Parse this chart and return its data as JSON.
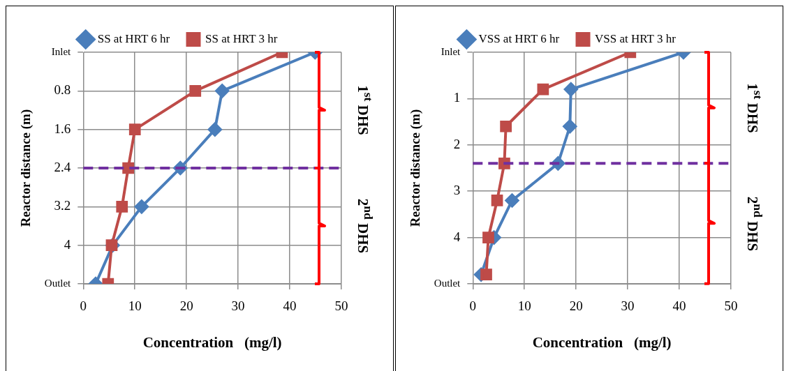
{
  "chart_data": [
    {
      "type": "line",
      "xlabel": "Concentration   (mg/l)",
      "ylabel": "Reactor distance (m)",
      "xlim": [
        0,
        50
      ],
      "xticks": [
        0,
        10,
        20,
        30,
        40,
        50
      ],
      "ylim": [
        4.8,
        0
      ],
      "yticks": [
        {
          "value": 0,
          "label": "Inlet"
        },
        0.8,
        1.6,
        2.4,
        3.2,
        4,
        {
          "value": 4.8,
          "label": "Outlet"
        }
      ],
      "grid": true,
      "legend": "top",
      "line_style": "solid",
      "series": [
        {
          "name": "SS at HRT 6 hr",
          "color": "#4a7ebb",
          "marker": "diamond",
          "x": [
            44.9,
            26.9,
            25.5,
            18.8,
            11.3,
            5.7,
            2.4
          ],
          "values": [
            0,
            0.8,
            1.6,
            2.4,
            3.2,
            4,
            4.8
          ]
        },
        {
          "name": "SS at HRT 3 hr",
          "color": "#be4b48",
          "marker": "square",
          "x": [
            38.5,
            21.7,
            10,
            8.7,
            7.5,
            5.5,
            4.8
          ],
          "values": [
            0,
            0.8,
            1.6,
            2.4,
            3.2,
            4,
            4.8
          ]
        }
      ],
      "ref_lines": [
        {
          "axis": "y",
          "value": 2.4,
          "color": "#7030a0",
          "line_style": "dashed"
        }
      ],
      "annotations": [
        "1$^{st}$ DHS",
        "2$^{nd}$ DHS"
      ]
    },
    {
      "type": "line",
      "xlabel": "Concentration   (mg/l)",
      "ylabel": "Reactor distance (m)",
      "xlim": [
        0,
        50
      ],
      "xticks": [
        0,
        10,
        20,
        30,
        40,
        50
      ],
      "ylim": [
        5,
        0
      ],
      "yticks": [
        {
          "value": 0,
          "label": "Inlet"
        },
        1,
        2,
        3,
        4,
        {
          "value": 5,
          "label": "Outlet"
        }
      ],
      "grid": true,
      "legend": "top",
      "line_style": "solid",
      "series": [
        {
          "name": "VSS at HRT 6 hr",
          "color": "#4a7ebb",
          "marker": "diamond",
          "x": [
            40.8,
            19,
            18.8,
            16.5,
            7.6,
            4.1,
            1.6
          ],
          "values": [
            0,
            0.8,
            1.6,
            2.4,
            3.2,
            4,
            4.8
          ]
        },
        {
          "name": "VSS at HRT 3 hr",
          "color": "#be4b48",
          "marker": "square",
          "x": [
            30.5,
            13.6,
            6.4,
            6.1,
            4.7,
            3,
            2.6
          ],
          "values": [
            0,
            0.8,
            1.6,
            2.4,
            3.2,
            4,
            4.8
          ]
        }
      ],
      "ref_lines": [
        {
          "axis": "y",
          "value": 2.4,
          "color": "#7030a0",
          "line_style": "dashed"
        }
      ],
      "annotations": [
        "1$^{st}$ DHS",
        "2$^{nd}$ DHS"
      ]
    }
  ]
}
